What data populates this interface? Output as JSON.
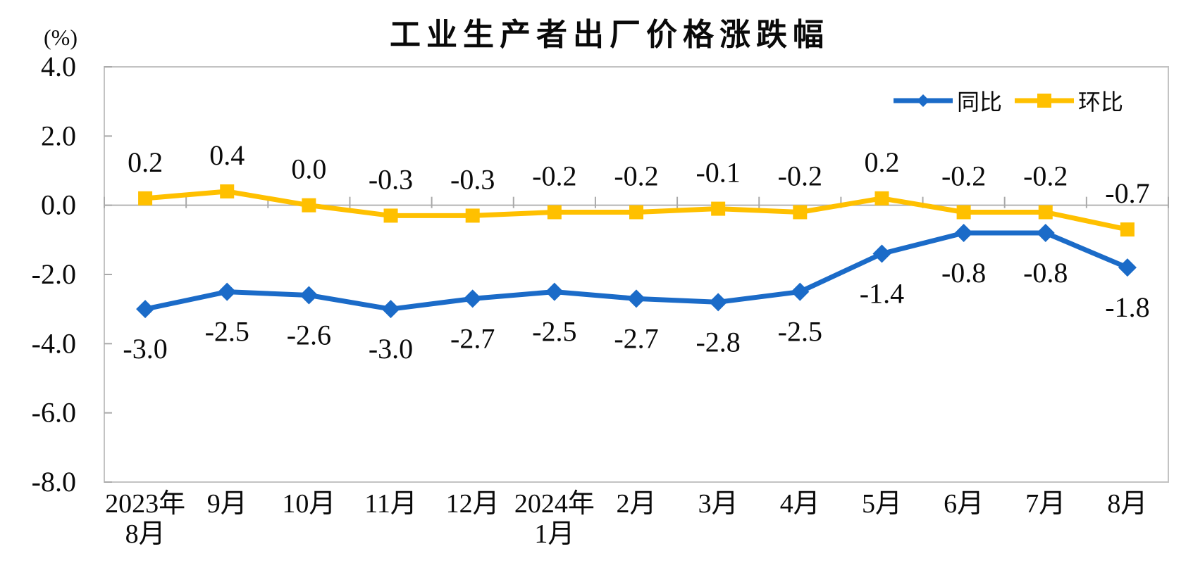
{
  "chart_data": {
    "type": "line",
    "title": "工业生产者出厂价格涨跌幅",
    "unit_label": "(%)",
    "categories": [
      "2023年\n8月",
      "9月",
      "10月",
      "11月",
      "12月",
      "2024年\n1月",
      "2月",
      "3月",
      "4月",
      "5月",
      "6月",
      "7月",
      "8月"
    ],
    "series": [
      {
        "name": "同比",
        "color": "#1B6BC8",
        "marker": "diamond",
        "label_position": "below",
        "values": [
          -3.0,
          -2.5,
          -2.6,
          -3.0,
          -2.7,
          -2.5,
          -2.7,
          -2.8,
          -2.5,
          -1.4,
          -0.8,
          -0.8,
          -1.8
        ],
        "point_labels": [
          "-3.0",
          "-2.5",
          "-2.6",
          "-3.0",
          "-2.7",
          "-2.5",
          "-2.7",
          "-2.8",
          "-2.5",
          "-1.4",
          "-0.8",
          "-0.8",
          "-1.8"
        ]
      },
      {
        "name": "环比",
        "color": "#FFC000",
        "marker": "square",
        "label_position": "above",
        "values": [
          0.2,
          0.4,
          0.0,
          -0.3,
          -0.3,
          -0.2,
          -0.2,
          -0.1,
          -0.2,
          0.2,
          -0.2,
          -0.2,
          -0.7
        ],
        "point_labels": [
          "0.2",
          "0.4",
          "0.0",
          "-0.3",
          "-0.3",
          "-0.2",
          "-0.2",
          "-0.1",
          "-0.2",
          "0.2",
          "-0.2",
          "-0.2",
          "-0.7"
        ]
      }
    ],
    "ylim": [
      -8,
      4
    ],
    "ytick_step": 2,
    "ytick_labels": [
      "4.0",
      "2.0",
      "0.0",
      "-2.0",
      "-4.0",
      "-6.0",
      "-8.0"
    ],
    "grid": "zero-line-only",
    "legend_position": "top-right",
    "colors": {
      "axis_border": "#c3c3c3",
      "zero_line": "#b3b3b3",
      "tick": "#a9a9a9",
      "text": "#0a0a0a"
    }
  }
}
